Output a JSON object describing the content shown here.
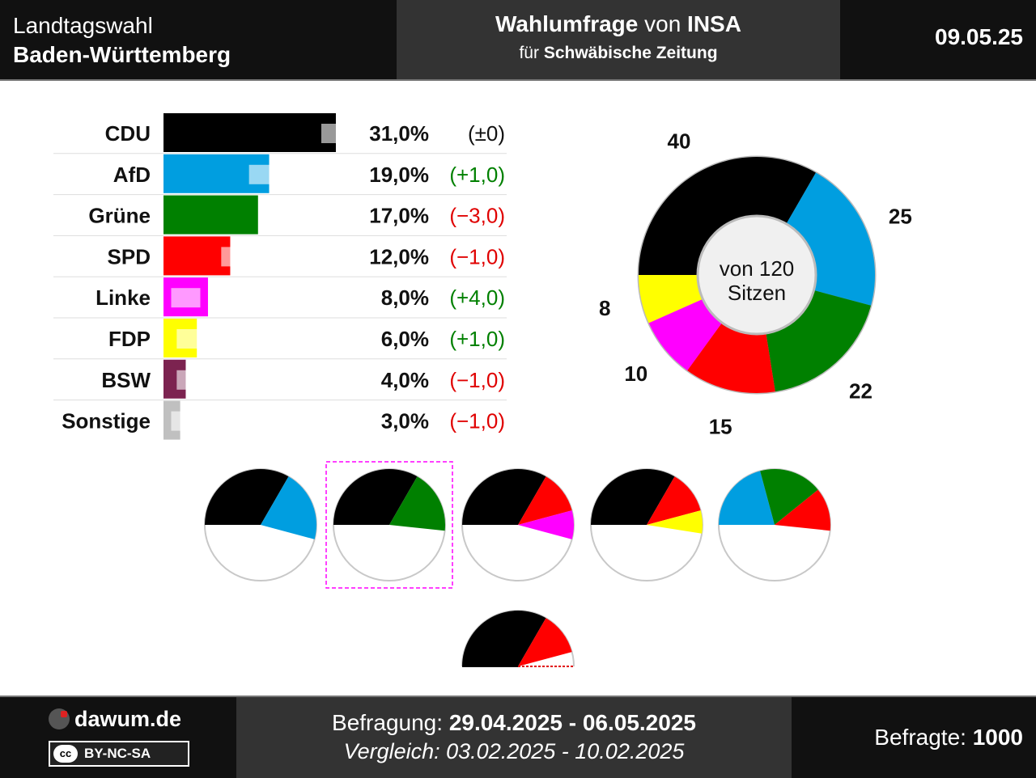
{
  "header": {
    "title_line1": "Landtagswahl",
    "title_line2": "Baden-Württemberg",
    "poll_label_bold1": "Wahlumfrage",
    "poll_label_mid": " von ",
    "poll_label_bold2": "INSA",
    "client_prefix": "für ",
    "client_name": "Schwäbische Zeitung",
    "date": "09.05.25"
  },
  "chart_data": [
    {
      "type": "bar",
      "orientation": "horizontal",
      "categories": [
        "CDU",
        "AfD",
        "Grüne",
        "SPD",
        "Linke",
        "FDP",
        "BSW",
        "Sonstige"
      ],
      "values": [
        31.0,
        19.0,
        17.0,
        12.0,
        8.0,
        6.0,
        4.0,
        3.0
      ],
      "value_labels": [
        "31,0%",
        "19,0%",
        "17,0%",
        "12,0%",
        "8,0%",
        "6,0%",
        "4,0%",
        "3,0%"
      ],
      "previous_values": [
        31.0,
        18.0,
        20.0,
        13.0,
        4.0,
        5.0,
        5.0,
        4.0
      ],
      "change_labels": [
        "(±0)",
        "(+1,0)",
        "(−3,0)",
        "(−1,0)",
        "(+4,0)",
        "(+1,0)",
        "(−1,0)",
        "(−1,0)"
      ],
      "change_signs": [
        "zero",
        "pos",
        "neg",
        "neg",
        "pos",
        "pos",
        "neg",
        "neg"
      ],
      "colors": [
        "#000000",
        "#009ee0",
        "#008000",
        "#ff0000",
        "#ff00ff",
        "#ffff00",
        "#7c2350",
        "#c0c0c0"
      ]
    },
    {
      "type": "pie",
      "style": "donut",
      "center_label_line1": "von 120",
      "center_label_line2": "Sitzen",
      "total": 120,
      "labels": [
        "CDU",
        "AfD",
        "Grüne",
        "SPD",
        "Linke",
        "FDP"
      ],
      "values": [
        40,
        25,
        22,
        15,
        10,
        8
      ],
      "value_labels": [
        "40",
        "25",
        "22",
        "15",
        "10",
        "8"
      ],
      "colors": [
        "#000000",
        "#009ee0",
        "#008000",
        "#ff0000",
        "#ff00ff",
        "#ffff00"
      ]
    },
    {
      "type": "pie",
      "style": "coalition-half-circles",
      "majority_seats": 61,
      "coalitions": [
        {
          "parties": [
            "CDU",
            "AfD"
          ],
          "seats": [
            40,
            25
          ],
          "colors": [
            "#000000",
            "#009ee0"
          ],
          "highlighted": false
        },
        {
          "parties": [
            "CDU",
            "Grüne"
          ],
          "seats": [
            40,
            22
          ],
          "colors": [
            "#000000",
            "#008000"
          ],
          "highlighted": true
        },
        {
          "parties": [
            "CDU",
            "SPD",
            "Linke"
          ],
          "seats": [
            40,
            15,
            10
          ],
          "colors": [
            "#000000",
            "#ff0000",
            "#ff00ff"
          ],
          "highlighted": false
        },
        {
          "parties": [
            "CDU",
            "SPD",
            "FDP"
          ],
          "seats": [
            40,
            15,
            8
          ],
          "colors": [
            "#000000",
            "#ff0000",
            "#ffff00"
          ],
          "highlighted": false
        },
        {
          "parties": [
            "AfD",
            "Grüne",
            "SPD"
          ],
          "seats": [
            25,
            22,
            15
          ],
          "colors": [
            "#009ee0",
            "#008000",
            "#ff0000"
          ],
          "highlighted": false
        },
        {
          "parties": [
            "CDU",
            "SPD"
          ],
          "seats": [
            40,
            15
          ],
          "colors": [
            "#000000",
            "#ff0000"
          ],
          "highlighted": false,
          "no_majority": true
        }
      ]
    }
  ],
  "footer": {
    "site": "dawum.de",
    "license": "BY-NC-SA",
    "license_icon": "cc",
    "survey_label": "Befragung: ",
    "survey_period": "29.04.2025 - 06.05.2025",
    "comparison_label": "Vergleich: ",
    "comparison_period": "03.02.2025 - 10.02.2025",
    "respondents_label": "Befragte: ",
    "respondents": "1000"
  }
}
